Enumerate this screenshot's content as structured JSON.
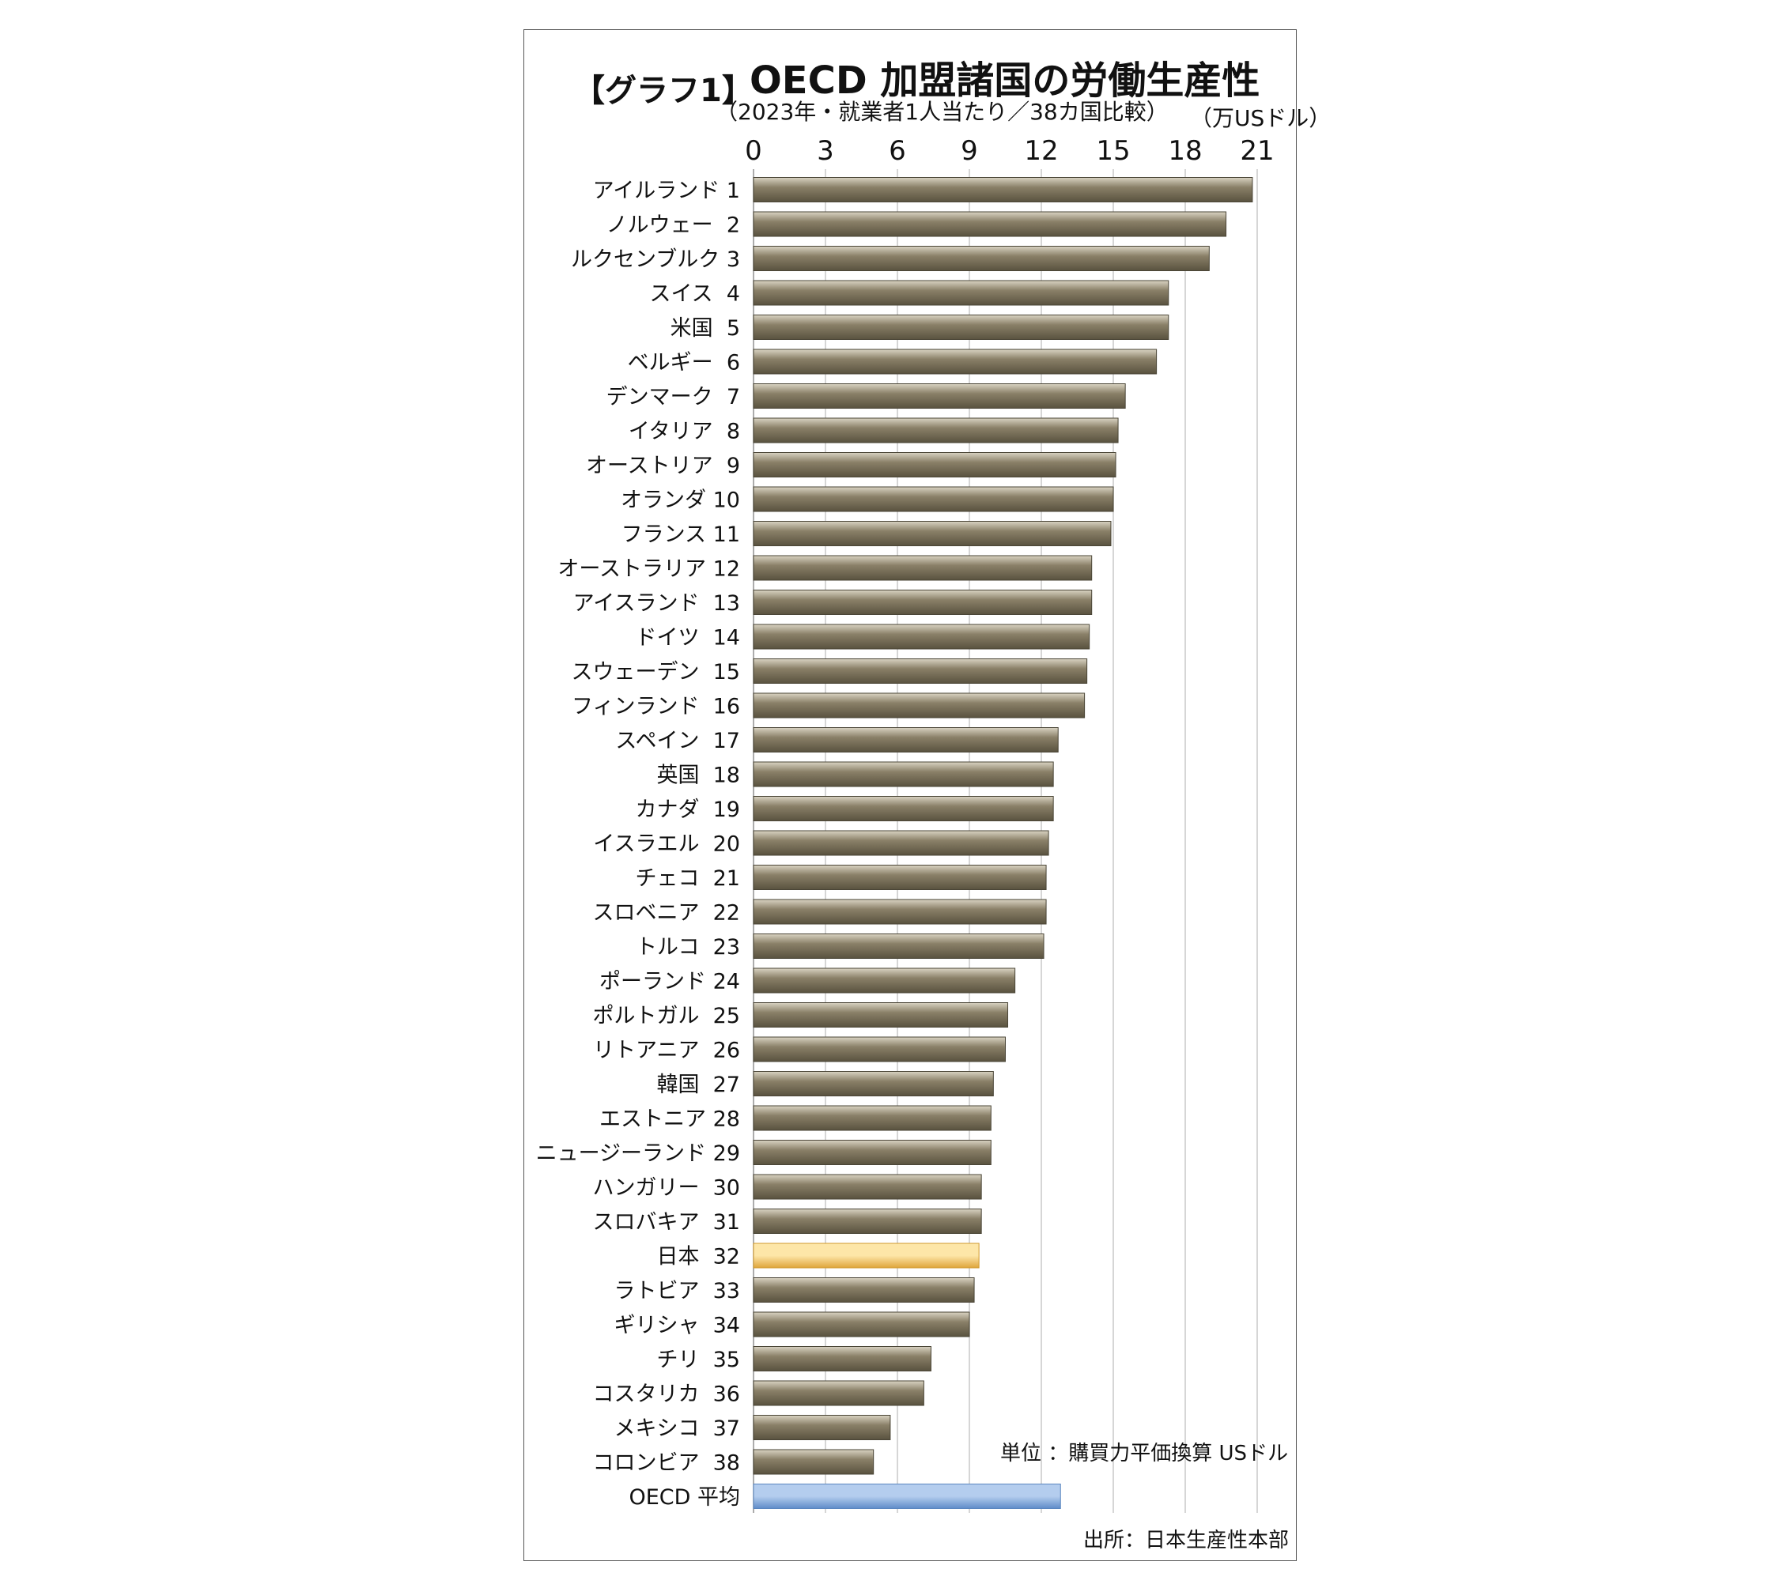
{
  "chart_data": {
    "type": "bar",
    "orientation": "horizontal",
    "tag": "【グラフ1】",
    "title": "OECD 加盟諸国の労働生産性",
    "subtitle": "（2023年・就業者1人当たり／38カ国比較）",
    "unit_top": "（万USドル）",
    "unit_note": "単位 ：購買力平価換算 USドル",
    "source": "出所：日本生産性本部",
    "xlim": [
      0,
      21
    ],
    "xticks": [
      0,
      3,
      6,
      9,
      12,
      15,
      18,
      21
    ],
    "grid": true,
    "bars": [
      {
        "label": "アイルランド 1",
        "value": 20.8,
        "highlight": "none"
      },
      {
        "label": "ノルウェー  2",
        "value": 19.7,
        "highlight": "none"
      },
      {
        "label": "ルクセンブルク 3",
        "value": 19.0,
        "highlight": "none"
      },
      {
        "label": "スイス  4",
        "value": 17.3,
        "highlight": "none"
      },
      {
        "label": "米国  5",
        "value": 17.3,
        "highlight": "none"
      },
      {
        "label": "ベルギー  6",
        "value": 16.8,
        "highlight": "none"
      },
      {
        "label": "デンマーク  7",
        "value": 15.5,
        "highlight": "none"
      },
      {
        "label": "イタリア  8",
        "value": 15.2,
        "highlight": "none"
      },
      {
        "label": "オーストリア  9",
        "value": 15.1,
        "highlight": "none"
      },
      {
        "label": "オランダ 10",
        "value": 15.0,
        "highlight": "none"
      },
      {
        "label": "フランス 11",
        "value": 14.9,
        "highlight": "none"
      },
      {
        "label": "オーストラリア 12",
        "value": 14.1,
        "highlight": "none"
      },
      {
        "label": "アイスランド  13",
        "value": 14.1,
        "highlight": "none"
      },
      {
        "label": "ドイツ  14",
        "value": 14.0,
        "highlight": "none"
      },
      {
        "label": "スウェーデン  15",
        "value": 13.9,
        "highlight": "none"
      },
      {
        "label": "フィンランド  16",
        "value": 13.8,
        "highlight": "none"
      },
      {
        "label": "スペイン  17",
        "value": 12.7,
        "highlight": "none"
      },
      {
        "label": "英国  18",
        "value": 12.5,
        "highlight": "none"
      },
      {
        "label": "カナダ  19",
        "value": 12.5,
        "highlight": "none"
      },
      {
        "label": "イスラエル  20",
        "value": 12.3,
        "highlight": "none"
      },
      {
        "label": "チェコ  21",
        "value": 12.2,
        "highlight": "none"
      },
      {
        "label": "スロベニア  22",
        "value": 12.2,
        "highlight": "none"
      },
      {
        "label": "トルコ  23",
        "value": 12.1,
        "highlight": "none"
      },
      {
        "label": "ポーランド 24",
        "value": 10.9,
        "highlight": "none"
      },
      {
        "label": "ポルトガル  25",
        "value": 10.6,
        "highlight": "none"
      },
      {
        "label": "リトアニア  26",
        "value": 10.5,
        "highlight": "none"
      },
      {
        "label": "韓国  27",
        "value": 10.0,
        "highlight": "none"
      },
      {
        "label": "エストニア 28",
        "value": 9.9,
        "highlight": "none"
      },
      {
        "label": "ニュージーランド 29",
        "value": 9.9,
        "highlight": "none"
      },
      {
        "label": "ハンガリー  30",
        "value": 9.5,
        "highlight": "none"
      },
      {
        "label": "スロバキア  31",
        "value": 9.5,
        "highlight": "none"
      },
      {
        "label": "日本  32",
        "value": 9.4,
        "highlight": "japan"
      },
      {
        "label": "ラトビア  33",
        "value": 9.2,
        "highlight": "none"
      },
      {
        "label": "ギリシャ  34",
        "value": 9.0,
        "highlight": "none"
      },
      {
        "label": "チリ  35",
        "value": 7.4,
        "highlight": "none"
      },
      {
        "label": "コスタリカ  36",
        "value": 7.1,
        "highlight": "none"
      },
      {
        "label": "メキシコ  37",
        "value": 5.7,
        "highlight": "none"
      },
      {
        "label": "コロンビア  38",
        "value": 5.0,
        "highlight": "none"
      },
      {
        "label": "OECD 平均",
        "value": 12.8,
        "highlight": "oecd"
      }
    ]
  },
  "colors": {
    "bar_dark": "#59523f",
    "bar_mid": "#8a8068",
    "bar_light": "#d9d3c2",
    "japan_dark": "#dfa53b",
    "japan_light": "#fde6a8",
    "oecd_dark": "#5f8cc8",
    "oecd_light": "#b4cdee",
    "grid": "#c8c8c8"
  }
}
